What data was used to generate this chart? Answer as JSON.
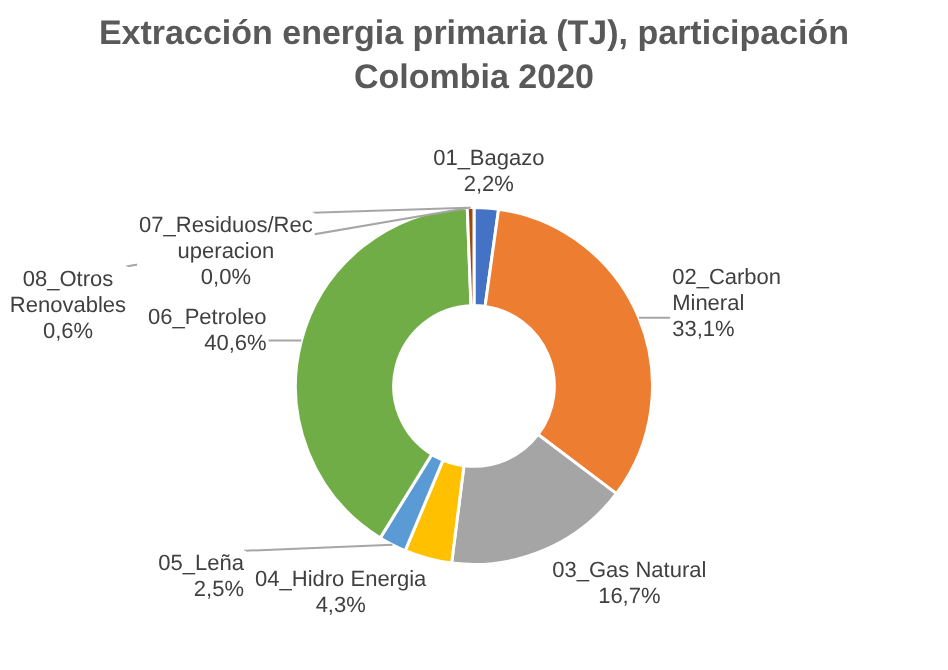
{
  "chart_data": {
    "type": "donut",
    "title": "Extracción energia primaria (TJ), participación Colombia 2020",
    "categories": [
      "01_Bagazo",
      "02_Carbon Mineral",
      "03_Gas Natural",
      "04_Hidro Energia",
      "05_Leña",
      "06_Petroleo",
      "07_Residuos/Recuperacion",
      "08_Otros Renovables"
    ],
    "values": [
      2.2,
      33.1,
      16.7,
      4.3,
      2.5,
      40.6,
      0.0,
      0.6
    ],
    "value_labels": [
      "2,2%",
      "33,1%",
      "16,7%",
      "4,3%",
      "2,5%",
      "40,6%",
      "0,0%",
      "0,6%"
    ],
    "colors": [
      "#4472c4",
      "#ed7d31",
      "#a5a5a5",
      "#ffc000",
      "#5b9bd5",
      "#70ad47",
      "#264478",
      "#9e480e"
    ],
    "legend": false
  }
}
